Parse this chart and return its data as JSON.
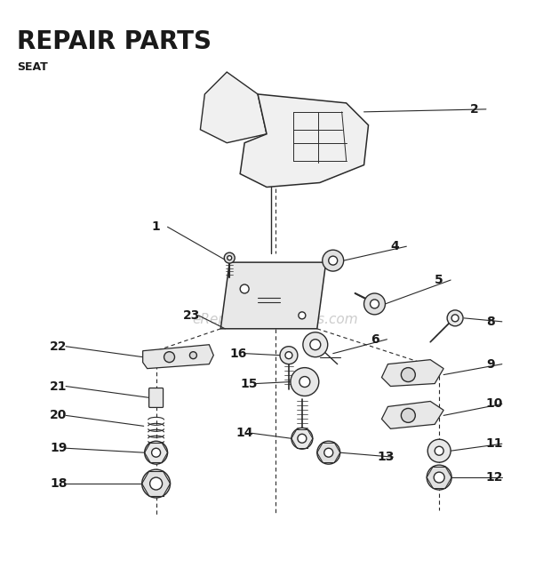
{
  "title": "REPAIR PARTS",
  "subtitle": "SEAT",
  "watermark": "eReplacementParts.com",
  "bg_color": "#ffffff",
  "line_color": "#2a2a2a",
  "text_color": "#1a1a1a",
  "watermark_color": "#c0c0c0",
  "title_fontsize": 20,
  "subtitle_fontsize": 9,
  "label_fontsize": 10,
  "watermark_fontsize": 11,
  "figsize": [
    6.2,
    6.48
  ],
  "dpi": 100
}
